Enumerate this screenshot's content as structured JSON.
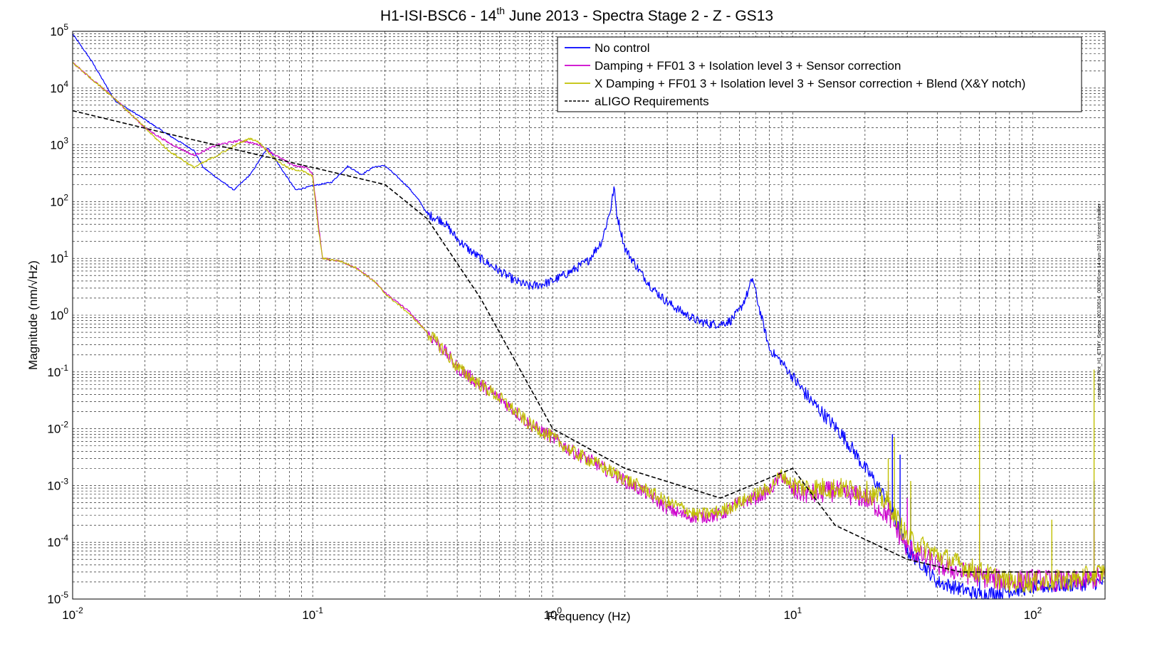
{
  "chart_data": {
    "type": "line",
    "title": {
      "main": "H1-ISI-BSC6 - 14",
      "sup": "th",
      "rest": " June 2013 - Spectra Stage 2 - Z - GS13"
    },
    "xlabel": "Frequency (Hz)",
    "ylabel": "Magnitude (nm/√Hz)",
    "xscale": "log",
    "yscale": "log",
    "xlim": [
      0.01,
      200
    ],
    "ylim": [
      1e-05,
      100000
    ],
    "grid": true,
    "legend_position": "top-right",
    "x_ticks": [
      {
        "base": "10",
        "exp": "-2"
      },
      {
        "base": "10",
        "exp": "-1"
      },
      {
        "base": "10",
        "exp": "0"
      },
      {
        "base": "10",
        "exp": "1"
      },
      {
        "base": "10",
        "exp": "2"
      }
    ],
    "y_ticks": [
      {
        "base": "10",
        "exp": "-5"
      },
      {
        "base": "10",
        "exp": "-4"
      },
      {
        "base": "10",
        "exp": "-3"
      },
      {
        "base": "10",
        "exp": "-2"
      },
      {
        "base": "10",
        "exp": "-1"
      },
      {
        "base": "10",
        "exp": "0"
      },
      {
        "base": "10",
        "exp": "1"
      },
      {
        "base": "10",
        "exp": "2"
      },
      {
        "base": "10",
        "exp": "3"
      },
      {
        "base": "10",
        "exp": "4"
      },
      {
        "base": "10",
        "exp": "5"
      }
    ],
    "series": [
      {
        "name": "No control",
        "color": "#0000ff",
        "noise": 0.08,
        "points": [
          [
            0.01,
            90000
          ],
          [
            0.012,
            30000
          ],
          [
            0.015,
            6000
          ],
          [
            0.02,
            2800
          ],
          [
            0.025,
            1500
          ],
          [
            0.032,
            800
          ],
          [
            0.035,
            400
          ],
          [
            0.04,
            260
          ],
          [
            0.047,
            160
          ],
          [
            0.055,
            300
          ],
          [
            0.065,
            900
          ],
          [
            0.075,
            350
          ],
          [
            0.085,
            160
          ],
          [
            0.1,
            190
          ],
          [
            0.12,
            220
          ],
          [
            0.14,
            420
          ],
          [
            0.16,
            300
          ],
          [
            0.18,
            410
          ],
          [
            0.2,
            430
          ],
          [
            0.22,
            300
          ],
          [
            0.25,
            180
          ],
          [
            0.28,
            100
          ],
          [
            0.3,
            60
          ],
          [
            0.35,
            45
          ],
          [
            0.4,
            22
          ],
          [
            0.45,
            14
          ],
          [
            0.5,
            10
          ],
          [
            0.6,
            6
          ],
          [
            0.7,
            4
          ],
          [
            0.8,
            3.2
          ],
          [
            0.9,
            3.5
          ],
          [
            1.0,
            4
          ],
          [
            1.2,
            6
          ],
          [
            1.4,
            9
          ],
          [
            1.6,
            20
          ],
          [
            1.75,
            80
          ],
          [
            1.8,
            180
          ],
          [
            1.85,
            60
          ],
          [
            2.0,
            15
          ],
          [
            2.3,
            6
          ],
          [
            2.6,
            3
          ],
          [
            3.0,
            1.7
          ],
          [
            3.5,
            1.1
          ],
          [
            4.0,
            0.8
          ],
          [
            4.5,
            0.7
          ],
          [
            5.0,
            0.7
          ],
          [
            5.5,
            0.8
          ],
          [
            6.0,
            1.2
          ],
          [
            6.5,
            2.5
          ],
          [
            6.8,
            4.5
          ],
          [
            7.2,
            1.5
          ],
          [
            8.0,
            0.25
          ],
          [
            9.0,
            0.15
          ],
          [
            10.0,
            0.08
          ],
          [
            12.0,
            0.03
          ],
          [
            14.0,
            0.015
          ],
          [
            16.0,
            0.008
          ],
          [
            18.0,
            0.004
          ],
          [
            20.0,
            0.002
          ],
          [
            22.0,
            0.0012
          ],
          [
            25.0,
            0.0005
          ],
          [
            28.0,
            0.00015
          ],
          [
            30.0,
            7e-05
          ],
          [
            35.0,
            4e-05
          ],
          [
            40.0,
            2e-05
          ],
          [
            50.0,
            1.5e-05
          ],
          [
            60.0,
            1.2e-05
          ],
          [
            80.0,
            1.4e-05
          ],
          [
            100.0,
            1.6e-05
          ],
          [
            150.0,
            1.8e-05
          ],
          [
            200.0,
            2e-05
          ]
        ],
        "spikes": [
          [
            26.0,
            0.008
          ],
          [
            28.0,
            0.0035
          ],
          [
            31.0,
            0.0006
          ],
          [
            60.0,
            0.0003
          ],
          [
            180.0,
            0.0012
          ]
        ]
      },
      {
        "name": "Damping + FF01 3 + Isolation level 3 + Sensor correction",
        "color": "#cc00cc",
        "noise": 0.12,
        "points": [
          [
            0.01,
            28000
          ],
          [
            0.015,
            6500
          ],
          [
            0.02,
            2000
          ],
          [
            0.025,
            1100
          ],
          [
            0.032,
            650
          ],
          [
            0.04,
            1000
          ],
          [
            0.05,
            1200
          ],
          [
            0.06,
            1000
          ],
          [
            0.065,
            800
          ],
          [
            0.075,
            550
          ],
          [
            0.085,
            420
          ],
          [
            0.095,
            400
          ],
          [
            0.1,
            300
          ],
          [
            0.105,
            50
          ],
          [
            0.11,
            10
          ],
          [
            0.13,
            9
          ],
          [
            0.15,
            7
          ],
          [
            0.18,
            4
          ],
          [
            0.2,
            2.5
          ],
          [
            0.25,
            1.2
          ],
          [
            0.3,
            0.5
          ],
          [
            0.35,
            0.25
          ],
          [
            0.4,
            0.12
          ],
          [
            0.5,
            0.06
          ],
          [
            0.6,
            0.035
          ],
          [
            0.7,
            0.02
          ],
          [
            0.8,
            0.012
          ],
          [
            1.0,
            0.007
          ],
          [
            1.2,
            0.004
          ],
          [
            1.5,
            0.0025
          ],
          [
            2.0,
            0.0012
          ],
          [
            2.5,
            0.0007
          ],
          [
            3.0,
            0.0004
          ],
          [
            3.5,
            0.0003
          ],
          [
            4.0,
            0.00028
          ],
          [
            5.0,
            0.0003
          ],
          [
            6.0,
            0.0005
          ],
          [
            7.0,
            0.0006
          ],
          [
            8.0,
            0.0008
          ],
          [
            9.0,
            0.0015
          ],
          [
            10.0,
            0.0008
          ],
          [
            12.0,
            0.0007
          ],
          [
            15.0,
            0.0008
          ],
          [
            20.0,
            0.0006
          ],
          [
            25.0,
            0.0003
          ],
          [
            30.0,
            8e-05
          ],
          [
            40.0,
            4e-05
          ],
          [
            50.0,
            3e-05
          ],
          [
            60.0,
            2.5e-05
          ],
          [
            80.0,
            2e-05
          ],
          [
            100.0,
            2.2e-05
          ],
          [
            150.0,
            2e-05
          ],
          [
            200.0,
            2.5e-05
          ]
        ],
        "spikes": [
          [
            25.0,
            0.0012
          ],
          [
            30.0,
            0.0006
          ],
          [
            60.0,
            0.0004
          ],
          [
            180.0,
            0.0004
          ]
        ]
      },
      {
        "name": "X Damping + FF01 3 + Isolation level 3 + Sensor correction + Blend (X&Y notch)",
        "color": "#c0c000",
        "noise": 0.12,
        "points": [
          [
            0.01,
            28000
          ],
          [
            0.015,
            6500
          ],
          [
            0.02,
            2000
          ],
          [
            0.025,
            800
          ],
          [
            0.032,
            400
          ],
          [
            0.04,
            650
          ],
          [
            0.05,
            1100
          ],
          [
            0.055,
            1300
          ],
          [
            0.06,
            1100
          ],
          [
            0.07,
            550
          ],
          [
            0.08,
            380
          ],
          [
            0.09,
            350
          ],
          [
            0.1,
            280
          ],
          [
            0.105,
            40
          ],
          [
            0.11,
            10
          ],
          [
            0.13,
            9
          ],
          [
            0.15,
            7
          ],
          [
            0.18,
            4
          ],
          [
            0.2,
            2.4
          ],
          [
            0.25,
            1.1
          ],
          [
            0.3,
            0.5
          ],
          [
            0.35,
            0.25
          ],
          [
            0.4,
            0.12
          ],
          [
            0.5,
            0.06
          ],
          [
            0.6,
            0.035
          ],
          [
            0.7,
            0.02
          ],
          [
            0.8,
            0.012
          ],
          [
            1.0,
            0.007
          ],
          [
            1.2,
            0.004
          ],
          [
            1.5,
            0.0025
          ],
          [
            2.0,
            0.0013
          ],
          [
            2.5,
            0.0008
          ],
          [
            3.0,
            0.0005
          ],
          [
            3.5,
            0.0004
          ],
          [
            4.0,
            0.0003
          ],
          [
            5.0,
            0.00035
          ],
          [
            6.0,
            0.0005
          ],
          [
            7.0,
            0.0007
          ],
          [
            8.0,
            0.0009
          ],
          [
            9.0,
            0.0016
          ],
          [
            10.0,
            0.001
          ],
          [
            12.0,
            0.0009
          ],
          [
            15.0,
            0.0009
          ],
          [
            20.0,
            0.0008
          ],
          [
            25.0,
            0.0005
          ],
          [
            30.0,
            0.00012
          ],
          [
            40.0,
            6e-05
          ],
          [
            50.0,
            4e-05
          ],
          [
            60.0,
            3e-05
          ],
          [
            80.0,
            2e-05
          ],
          [
            100.0,
            2e-05
          ],
          [
            150.0,
            2.2e-05
          ],
          [
            200.0,
            3e-05
          ]
        ],
        "spikes": [
          [
            25.0,
            0.003
          ],
          [
            26.5,
            0.007
          ],
          [
            31.0,
            0.0012
          ],
          [
            60.0,
            0.07
          ],
          [
            120.0,
            0.00025
          ],
          [
            180.0,
            0.11
          ]
        ]
      },
      {
        "name": "aLIGO Requirements",
        "color": "#000000",
        "dashed": true,
        "points": [
          [
            0.01,
            4000
          ],
          [
            0.03,
            1300
          ],
          [
            0.1,
            400
          ],
          [
            0.2,
            200
          ],
          [
            0.3,
            50
          ],
          [
            0.5,
            2
          ],
          [
            1.0,
            0.01
          ],
          [
            2.0,
            0.002
          ],
          [
            5.0,
            0.0006
          ],
          [
            10.0,
            0.002
          ],
          [
            15.0,
            0.0002
          ],
          [
            30.0,
            5e-05
          ],
          [
            50.0,
            3e-05
          ],
          [
            200.0,
            3e-05
          ]
        ]
      }
    ]
  },
  "side_note": "created by Plot_H1_ETMY_Spectra_20130614_083000 on 14-Jun-2013 Vincent Lhuillier"
}
